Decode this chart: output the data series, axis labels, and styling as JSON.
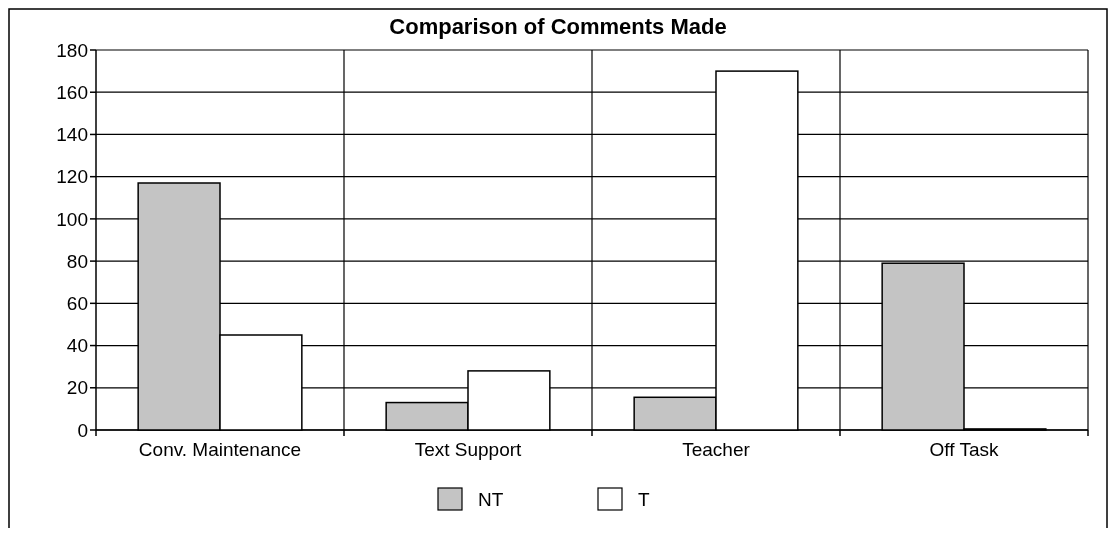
{
  "chart_data": {
    "type": "bar",
    "title": "Comparison of Comments Made",
    "categories": [
      "Conv. Maintenance",
      "Text Support",
      "Teacher",
      "Off Task"
    ],
    "series": [
      {
        "name": "NT",
        "color": "#c4c4c4",
        "values": [
          117,
          13,
          15.5,
          79
        ]
      },
      {
        "name": "T",
        "color": "#ffffff",
        "values": [
          45,
          28,
          170,
          0.5
        ]
      }
    ],
    "ylim": [
      0,
      180
    ],
    "yticks": [
      0,
      20,
      40,
      60,
      80,
      100,
      120,
      140,
      160,
      180
    ],
    "grid": true,
    "legend": "bottom"
  }
}
